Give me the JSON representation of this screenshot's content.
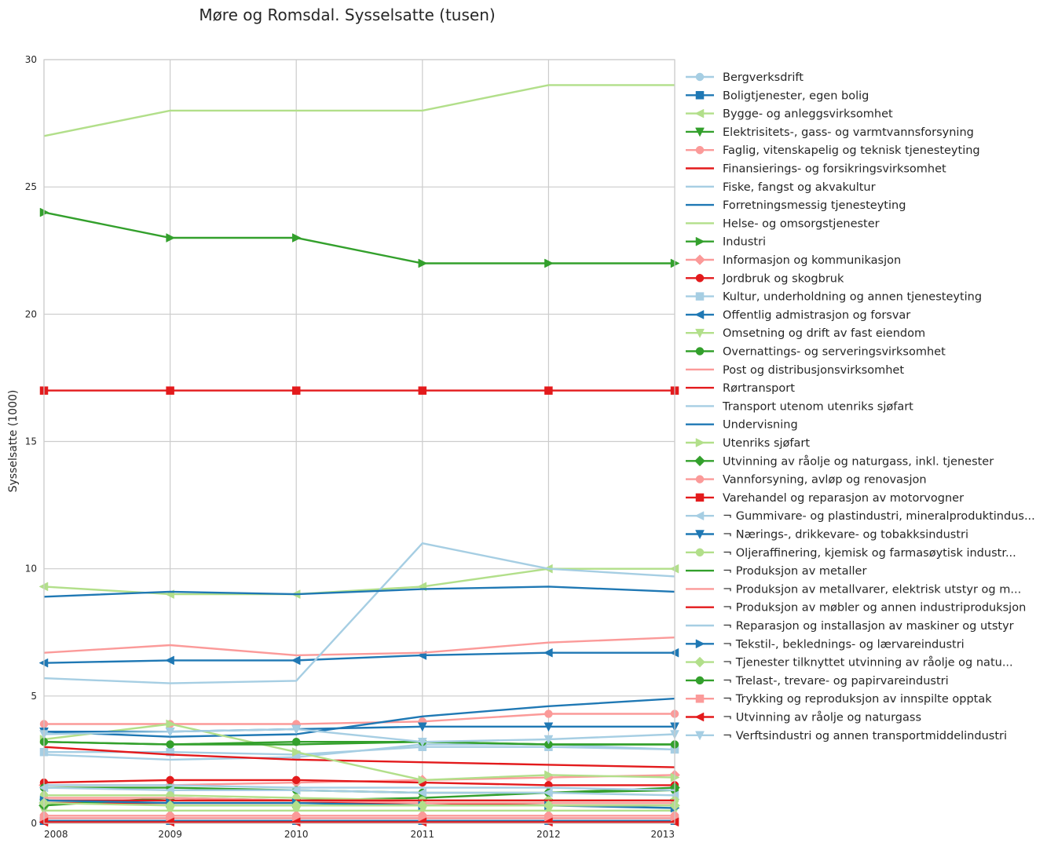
{
  "chart_data": {
    "type": "line",
    "title": "Møre og Romsdal. Sysselsatte (tusen)",
    "xlabel": "",
    "ylabel": "Sysselsatte (1000)",
    "x": [
      2008,
      2009,
      2010,
      2011,
      2012,
      2013
    ],
    "xlim": [
      2008,
      2013
    ],
    "ylim": [
      0,
      30
    ],
    "yticks": [
      0,
      5,
      10,
      15,
      20,
      25,
      30
    ],
    "grid": true,
    "legend_position": "right, outside plot",
    "series": [
      {
        "name": "Bergverksdrift",
        "color": "#a6cee3",
        "marker": "circle",
        "values": [
          0.2,
          0.2,
          0.2,
          0.2,
          0.2,
          0.2
        ]
      },
      {
        "name": "Boligtjenester, egen bolig",
        "color": "#1f78b4",
        "marker": "square",
        "values": [
          0.1,
          0.1,
          0.1,
          0.1,
          0.1,
          0.1
        ]
      },
      {
        "name": "Bygge- og anleggsvirksomhet",
        "color": "#b2df8a",
        "marker": "triangle-left",
        "values": [
          9.3,
          9.0,
          9.0,
          9.3,
          10.0,
          10.0
        ]
      },
      {
        "name": "Elektrisitets-, gass- og varmtvannsforsyning",
        "color": "#33a02c",
        "marker": "triangle-down",
        "values": [
          0.8,
          0.8,
          0.8,
          0.8,
          0.8,
          0.8
        ]
      },
      {
        "name": "Faglig, vitenskapelig og teknisk tjenesteyting",
        "color": "#fb9a99",
        "marker": "circle",
        "values": [
          3.9,
          3.9,
          3.9,
          4.0,
          4.3,
          4.3
        ]
      },
      {
        "name": "Finansierings- og forsikringsvirksomhet",
        "color": "#e31a1c",
        "marker": "none",
        "values": [
          0.8,
          0.8,
          0.8,
          0.8,
          0.7,
          0.7
        ]
      },
      {
        "name": "Fiske, fangst og akvakultur",
        "color": "#a6cee3",
        "marker": "none",
        "values": [
          2.7,
          2.5,
          2.6,
          3.1,
          3.1,
          2.9
        ]
      },
      {
        "name": "Forretningsmessig tjenesteyting",
        "color": "#1f78b4",
        "marker": "none",
        "values": [
          3.6,
          3.4,
          3.5,
          4.2,
          4.6,
          4.9
        ]
      },
      {
        "name": "Helse- og omsorgstjenester",
        "color": "#b2df8a",
        "marker": "none",
        "values": [
          27,
          28,
          28,
          28,
          29,
          29
        ]
      },
      {
        "name": "Industri",
        "color": "#33a02c",
        "marker": "triangle-right",
        "values": [
          24,
          23,
          23,
          22,
          22,
          22
        ]
      },
      {
        "name": "Informasjon og kommunikasjon",
        "color": "#fb9a99",
        "marker": "diamond",
        "values": [
          1.5,
          1.5,
          1.6,
          1.7,
          1.8,
          1.9
        ]
      },
      {
        "name": "Jordbruk og skogbruk",
        "color": "#e31a1c",
        "marker": "circle",
        "values": [
          1.6,
          1.7,
          1.7,
          1.6,
          1.5,
          1.5
        ]
      },
      {
        "name": "Kultur, underholdning og annen tjenesteyting",
        "color": "#a6cee3",
        "marker": "square",
        "values": [
          2.8,
          2.8,
          2.7,
          3.0,
          3.0,
          2.9
        ]
      },
      {
        "name": "Offentlig admistrasjon og forsvar",
        "color": "#1f78b4",
        "marker": "triangle-left",
        "values": [
          6.3,
          6.4,
          6.4,
          6.6,
          6.7,
          6.7
        ]
      },
      {
        "name": "Omsetning og drift av fast eiendom",
        "color": "#b2df8a",
        "marker": "triangle-down",
        "values": [
          0.5,
          0.5,
          0.5,
          0.5,
          0.5,
          0.5
        ]
      },
      {
        "name": "Overnattings- og serveringsvirksomhet",
        "color": "#33a02c",
        "marker": "circle",
        "values": [
          1.4,
          1.4,
          1.3,
          1.2,
          1.2,
          1.3
        ]
      },
      {
        "name": "Post og distribusjonsvirksomhet",
        "color": "#fb9a99",
        "marker": "none",
        "values": [
          6.7,
          7.0,
          6.6,
          6.7,
          7.1,
          7.3
        ]
      },
      {
        "name": "Rørtransport",
        "color": "#e31a1c",
        "marker": "none",
        "values": [
          3.0,
          2.7,
          2.5,
          2.4,
          2.3,
          2.2
        ]
      },
      {
        "name": "Transport utenom utenriks sjøfart",
        "color": "#a6cee3",
        "marker": "none",
        "values": [
          5.7,
          5.5,
          5.6,
          11.0,
          10.0,
          9.7
        ]
      },
      {
        "name": "Undervisning",
        "color": "#1f78b4",
        "marker": "none",
        "values": [
          8.9,
          9.1,
          9.0,
          9.2,
          9.3,
          9.1
        ]
      },
      {
        "name": "Utenriks sjøfart",
        "color": "#b2df8a",
        "marker": "triangle-right",
        "values": [
          3.3,
          3.9,
          2.8,
          1.7,
          1.9,
          1.8
        ]
      },
      {
        "name": "Utvinning av råolje og naturgass, inkl. tjenester",
        "color": "#33a02c",
        "marker": "diamond",
        "values": [
          0.7,
          1.0,
          0.9,
          1.0,
          1.2,
          1.4
        ]
      },
      {
        "name": "Vannforsyning, avløp og renovasjon",
        "color": "#fb9a99",
        "marker": "circle",
        "values": [
          0.3,
          0.3,
          0.3,
          0.3,
          0.3,
          0.3
        ]
      },
      {
        "name": "Varehandel og reparasjon av motorvogner",
        "color": "#e31a1c",
        "marker": "square",
        "values": [
          17,
          17,
          17,
          17,
          17,
          17
        ]
      },
      {
        "name": "¬ Gummivare- og plastindustri, mineralproduktindus...",
        "color": "#a6cee3",
        "marker": "triangle-left",
        "values": [
          1.4,
          1.3,
          1.3,
          1.2,
          1.2,
          1.1
        ]
      },
      {
        "name": "¬ Nærings-, drikkevare- og tobakksindustri",
        "color": "#1f78b4",
        "marker": "triangle-down",
        "values": [
          3.6,
          3.6,
          3.7,
          3.8,
          3.8,
          3.8
        ]
      },
      {
        "name": "¬ Oljeraffinering, kjemisk og farmasøytisk industr...",
        "color": "#b2df8a",
        "marker": "circle",
        "values": [
          1.1,
          1.1,
          1.0,
          0.9,
          0.9,
          0.9
        ]
      },
      {
        "name": "¬ Produksjon av metaller",
        "color": "#33a02c",
        "marker": "none",
        "values": [
          3.2,
          3.1,
          3.1,
          3.2,
          3.1,
          3.1
        ]
      },
      {
        "name": "¬ Produksjon av metallvarer, elektrisk utstyr og m...",
        "color": "#fb9a99",
        "marker": "none",
        "values": [
          1.0,
          1.0,
          0.9,
          0.8,
          0.8,
          0.8
        ]
      },
      {
        "name": "¬ Produksjon av møbler og annen industriproduksjon",
        "color": "#e31a1c",
        "marker": "none",
        "values": [
          0.9,
          0.9,
          0.9,
          0.9,
          0.9,
          0.9
        ]
      },
      {
        "name": "¬ Reparasjon og installasjon av maskiner og utstyr",
        "color": "#a6cee3",
        "marker": "none",
        "values": [
          1.5,
          1.5,
          1.4,
          1.4,
          1.4,
          1.3
        ]
      },
      {
        "name": "¬ Tekstil-, beklednings- og lærvareindustri",
        "color": "#1f78b4",
        "marker": "triangle-right",
        "values": [
          0.9,
          0.8,
          0.8,
          0.7,
          0.7,
          0.6
        ]
      },
      {
        "name": "¬ Tjenester tilknyttet utvinning av råolje og natu...",
        "color": "#b2df8a",
        "marker": "diamond",
        "values": [
          0.8,
          0.7,
          0.7,
          0.7,
          0.7,
          0.7
        ]
      },
      {
        "name": "¬ Trelast-, trevare- og papirvareindustri",
        "color": "#33a02c",
        "marker": "circle",
        "values": [
          3.2,
          3.1,
          3.2,
          3.2,
          3.1,
          3.1
        ]
      },
      {
        "name": "¬ Trykking og reproduksjon av innspilte opptak",
        "color": "#fb9a99",
        "marker": "square",
        "values": [
          0.2,
          0.2,
          0.2,
          0.2,
          0.2,
          0.2
        ]
      },
      {
        "name": "¬ Utvinning av råolje og naturgass",
        "color": "#e31a1c",
        "marker": "triangle-left",
        "values": [
          0.05,
          0.05,
          0.05,
          0.05,
          0.05,
          0.05
        ]
      },
      {
        "name": "¬ Verftsindustri og annen transportmiddelindustri",
        "color": "#a6cee3",
        "marker": "triangle-down",
        "values": [
          3.5,
          3.6,
          3.7,
          3.2,
          3.3,
          3.5
        ]
      }
    ]
  }
}
